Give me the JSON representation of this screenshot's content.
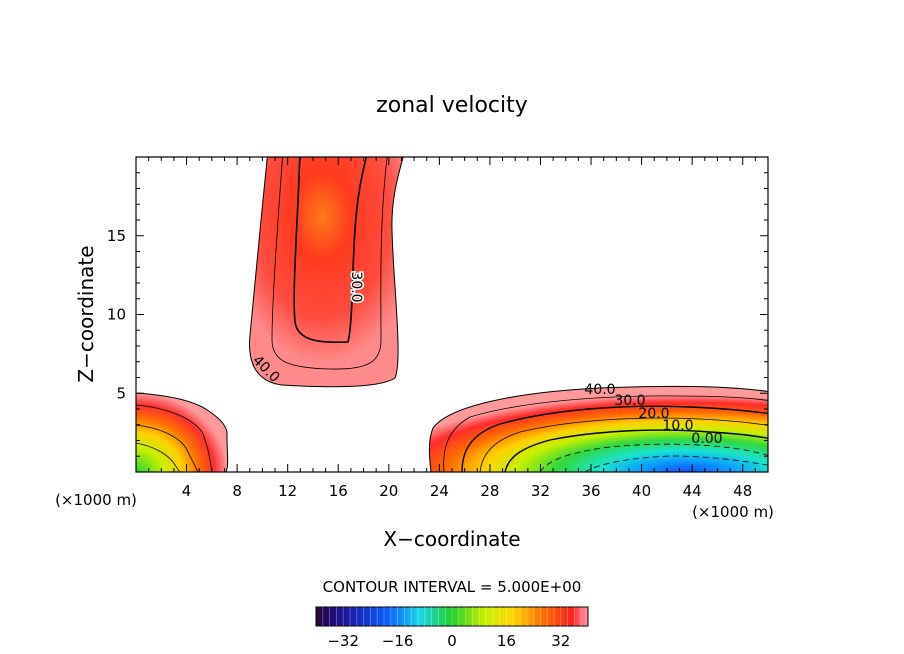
{
  "chart_data": {
    "type": "heatmap",
    "title": "zonal velocity",
    "xlabel": "X−coordinate",
    "ylabel": "Z−coordinate",
    "x_unit_left": "(×1000 m)",
    "x_unit_right": "(×1000 m)",
    "x_ticks": [
      "4",
      "8",
      "12",
      "16",
      "20",
      "24",
      "28",
      "32",
      "36",
      "40",
      "44",
      "48"
    ],
    "y_ticks": [
      "5",
      "10",
      "15"
    ],
    "xlim": [
      0,
      50
    ],
    "ylim": [
      0,
      20
    ],
    "contour_labels": [
      "30.0",
      "40.0",
      "40.0",
      "30.0",
      "20.0",
      "10.0",
      "0.00"
    ],
    "contour_interval_text": "CONTOUR INTERVAL = 5.000E+00",
    "colorbar_ticks": [
      "−32",
      "−16",
      "0",
      "16",
      "32"
    ],
    "colorbar_range": [
      -40,
      40
    ],
    "regions": [
      {
        "name": "upper-jet",
        "x_range": [
          9.5,
          21
        ],
        "z_range": [
          5.5,
          20
        ],
        "max_value": 50
      },
      {
        "name": "left-lower-jet",
        "x_range": [
          0,
          7
        ],
        "z_range": [
          0,
          5.1
        ],
        "min_value": 0
      },
      {
        "name": "right-lower-jet",
        "x_range": [
          23,
          50
        ],
        "z_range": [
          0,
          5.5
        ],
        "min_value": -40
      }
    ]
  }
}
